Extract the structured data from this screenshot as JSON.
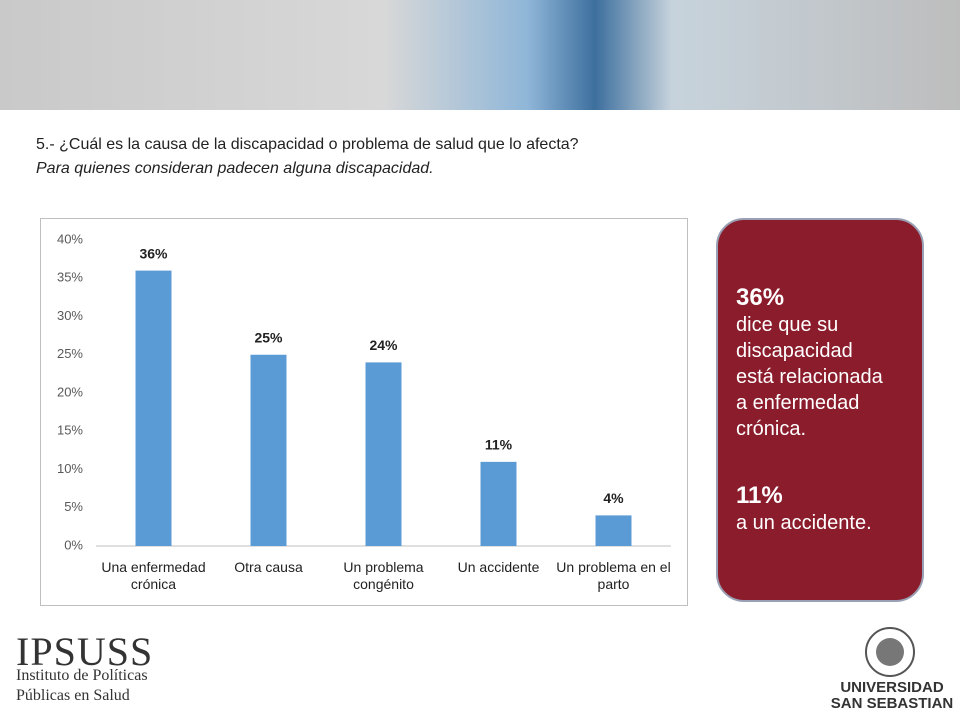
{
  "question": {
    "title": "5.- ¿Cuál es la causa de la discapacidad o problema de salud que lo afecta?",
    "subtitle": "Para quienes consideran padecen alguna discapacidad."
  },
  "chart_data": {
    "type": "bar",
    "categories": [
      "Una enfermedad crónica",
      "Otra causa",
      "Un problema congénito",
      "Un accidente",
      "Un problema en el parto"
    ],
    "values": [
      36,
      25,
      24,
      11,
      4
    ],
    "value_labels": [
      "36%",
      "25%",
      "24%",
      "11%",
      "4%"
    ],
    "color": "#5b9bd5",
    "ylim": [
      0,
      40
    ],
    "yticks": [
      {
        "value": 0,
        "label": "0%"
      },
      {
        "value": 5,
        "label": "5%"
      },
      {
        "value": 10,
        "label": "10%"
      },
      {
        "value": 15,
        "label": "15%"
      },
      {
        "value": 20,
        "label": "20%"
      },
      {
        "value": 25,
        "label": "25%"
      },
      {
        "value": 30,
        "label": "30%"
      },
      {
        "value": 35,
        "label": "35%"
      },
      {
        "value": 40,
        "label": "40%"
      }
    ],
    "grid": false
  },
  "callout": {
    "items": [
      {
        "value_label": "36%",
        "lines": [
          "dice que su",
          "discapacidad",
          "está relacionada",
          "a enfermedad",
          "crónica."
        ]
      },
      {
        "value_label": "11%",
        "lines": [
          "a un accidente."
        ]
      }
    ]
  },
  "logos": {
    "ipsuss": "IPSUSS",
    "ipsuss_sub": [
      "Instituto de Políticas",
      "Públicas en Salud"
    ],
    "university": [
      "UNIVERSIDAD",
      "SAN SEBASTIAN"
    ]
  }
}
